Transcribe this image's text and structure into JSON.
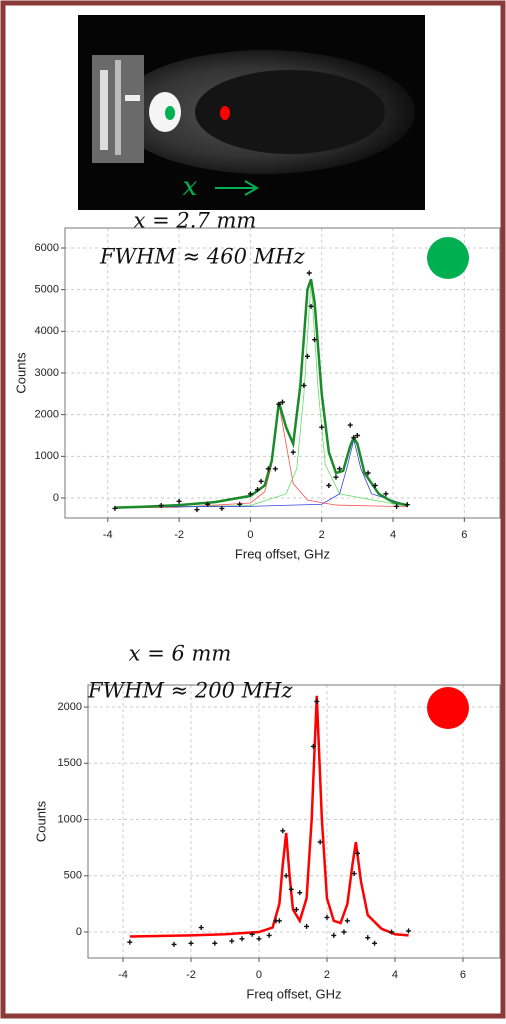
{
  "image": {
    "label": "x"
  },
  "chart_data": [
    {
      "type": "line",
      "annotations": [
        "x = 2.7 mm",
        "FWHM ≈ 460 MHz"
      ],
      "marker_color": "#00b050",
      "xlabel": "Freq offset, GHz",
      "ylabel": "Counts",
      "xlim": [
        -5.2,
        7
      ],
      "ylim": [
        -480,
        6480
      ],
      "xticks": [
        -4,
        -2,
        0,
        2,
        4,
        6
      ],
      "yticks": [
        0,
        1000,
        2000,
        3000,
        4000,
        5000,
        6000
      ],
      "grid": true,
      "series": [
        {
          "mode": "line",
          "color": "#ff5050",
          "width": 0.8,
          "x": [
            -3.8,
            -2,
            0,
            0.4,
            0.6,
            0.8,
            1.0,
            1.2,
            1.6,
            2.4,
            4.4
          ],
          "values": [
            -240,
            -220,
            -120,
            150,
            800,
            2250,
            1300,
            350,
            -50,
            -170,
            -210
          ]
        },
        {
          "mode": "line",
          "color": "#66dd66",
          "width": 0.8,
          "x": [
            -3.8,
            0,
            1.0,
            1.3,
            1.5,
            1.7,
            1.9,
            2.1,
            2.5,
            4.4
          ],
          "values": [
            -230,
            -180,
            100,
            700,
            2500,
            5200,
            2600,
            800,
            100,
            -200
          ]
        },
        {
          "mode": "line",
          "color": "#3344dd",
          "width": 0.8,
          "x": [
            -3.8,
            0,
            2.0,
            2.5,
            2.7,
            2.9,
            3.1,
            3.4,
            4.4
          ],
          "values": [
            -220,
            -200,
            -150,
            100,
            700,
            1400,
            700,
            100,
            -170
          ]
        },
        {
          "mode": "line",
          "color": "#1a8a2a",
          "width": 2.5,
          "x": [
            -3.8,
            -3,
            -2,
            -1,
            0,
            0.4,
            0.6,
            0.8,
            1.0,
            1.2,
            1.4,
            1.6,
            1.7,
            1.8,
            2.0,
            2.2,
            2.4,
            2.6,
            2.8,
            2.9,
            3.0,
            3.2,
            3.6,
            4.0,
            4.4
          ],
          "values": [
            -230,
            -210,
            -170,
            -100,
            50,
            300,
            900,
            2300,
            1700,
            1300,
            2700,
            5000,
            5250,
            4700,
            2500,
            1100,
            600,
            650,
            1250,
            1450,
            1300,
            600,
            100,
            -100,
            -170
          ]
        },
        {
          "mode": "markers",
          "color": "#111111",
          "x": [
            -3.8,
            -2.5,
            -2,
            -1.5,
            -1.2,
            -0.8,
            -0.3,
            0,
            0.2,
            0.3,
            0.5,
            0.7,
            0.8,
            0.9,
            1.2,
            1.5,
            1.6,
            1.65,
            1.7,
            1.8,
            2.0,
            2.2,
            2.4,
            2.5,
            2.8,
            2.9,
            3.0,
            3.3,
            3.5,
            3.8,
            4.1,
            4.4
          ],
          "values": [
            -250,
            -180,
            -80,
            -280,
            -150,
            -250,
            -150,
            100,
            200,
            400,
            700,
            700,
            2250,
            2300,
            1100,
            2700,
            3400,
            5400,
            4600,
            3800,
            1700,
            300,
            500,
            700,
            1750,
            1450,
            1500,
            600,
            300,
            100,
            -200,
            -160
          ]
        }
      ]
    },
    {
      "type": "line",
      "annotations": [
        "x = 6 mm",
        "FWHM ≈ 200 MHz"
      ],
      "marker_color": "#ff0000",
      "xlabel": "Freq offset, GHz",
      "ylabel": "Counts",
      "xlim": [
        -5.03,
        7.09
      ],
      "ylim": [
        -231,
        2196
      ],
      "xticks": [
        -4,
        -2,
        0,
        2,
        4,
        6
      ],
      "yticks": [
        0,
        500,
        1000,
        1500,
        2000
      ],
      "grid": true,
      "series": [
        {
          "mode": "line",
          "color": "#ff0000",
          "width": 2.5,
          "x": [
            -3.8,
            -2,
            -1,
            0,
            0.4,
            0.6,
            0.7,
            0.8,
            0.9,
            1.0,
            1.2,
            1.4,
            1.55,
            1.7,
            1.85,
            2.0,
            2.2,
            2.4,
            2.6,
            2.75,
            2.85,
            3.0,
            3.2,
            3.6,
            4.0,
            4.4
          ],
          "values": [
            -40,
            -30,
            -20,
            0,
            40,
            250,
            600,
            880,
            500,
            200,
            100,
            300,
            1000,
            2100,
            1000,
            300,
            100,
            80,
            250,
            600,
            800,
            450,
            150,
            30,
            -20,
            -30
          ]
        },
        {
          "mode": "markers",
          "color": "#111111",
          "x": [
            -3.8,
            -2.5,
            -2,
            -1.7,
            -1.3,
            -0.8,
            -0.5,
            -0.2,
            0,
            0.3,
            0.5,
            0.6,
            0.7,
            0.8,
            0.95,
            1.1,
            1.2,
            1.4,
            1.6,
            1.7,
            1.8,
            2.0,
            2.2,
            2.5,
            2.6,
            2.8,
            2.9,
            3.2,
            3.4,
            3.9,
            4.4
          ],
          "values": [
            -90,
            -110,
            -100,
            40,
            -100,
            -80,
            -60,
            -20,
            -60,
            -30,
            100,
            100,
            900,
            500,
            380,
            200,
            350,
            50,
            1650,
            2050,
            800,
            130,
            -30,
            0,
            100,
            520,
            700,
            -50,
            -100,
            0,
            10
          ]
        }
      ]
    }
  ]
}
